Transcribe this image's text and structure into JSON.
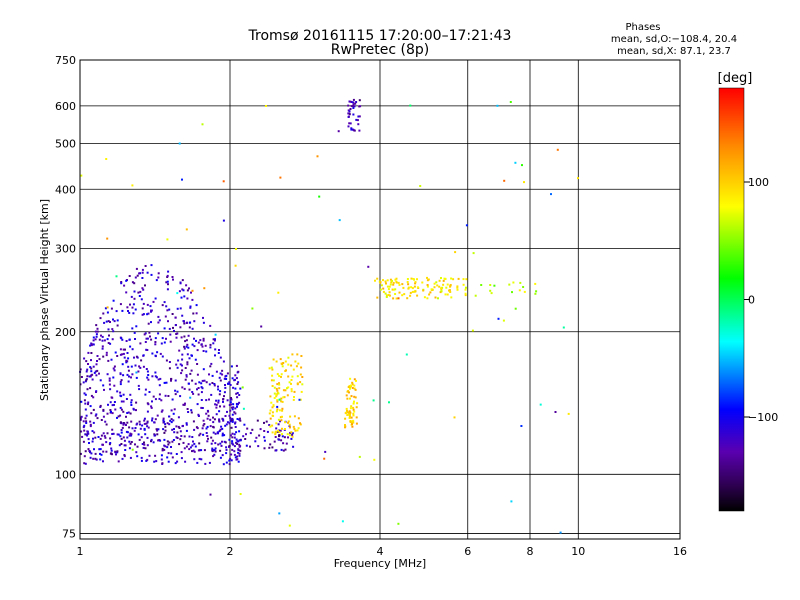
{
  "chart_data": {
    "type": "scatter",
    "title": "Tromsø 20161115 17:20:00–17:21:43",
    "subtitle": "RwPretec (8p)",
    "info_lines": [
      "Phases",
      "mean, sd,O:−108.4, 20.4",
      "mean, sd,X:  87.1, 23.7"
    ],
    "xlabel": "Frequency [MHz]",
    "ylabel": "Stationary phase Virtual Height [km]",
    "x_scale": "log2",
    "y_scale": "log",
    "xlim": [
      1,
      16
    ],
    "ylim": [
      73,
      750
    ],
    "x_ticks": [
      1,
      2,
      4,
      6,
      8,
      10,
      16
    ],
    "x_tick_labels": [
      "1",
      "2",
      "4",
      "6",
      "8",
      "10",
      "16"
    ],
    "y_ticks": [
      75,
      100,
      200,
      300,
      400,
      500,
      600,
      750
    ],
    "y_tick_labels": [
      "75",
      "100",
      "200",
      "300",
      "400",
      "500",
      "600",
      "750"
    ],
    "grid": true,
    "colorbar": {
      "label": "[deg]",
      "range": [
        -180,
        180
      ],
      "ticks": [
        100,
        0,
        -100
      ],
      "tick_labels": [
        "100",
        "0",
        "−100"
      ],
      "colors": [
        "#000000",
        "#2d0050",
        "#5a00b0",
        "#0000ff",
        "#00ffff",
        "#00ff00",
        "#ffff00",
        "#ff8c00",
        "#ff0000"
      ]
    },
    "clusters": [
      {
        "region": "O-mode main trace",
        "x_range": [
          1.0,
          2.1
        ],
        "y_range": [
          105,
          280
        ],
        "phase": -120,
        "count": 900
      },
      {
        "region": "O-mode lower edge",
        "x_range": [
          1.2,
          2.7
        ],
        "y_range": [
          112,
          130
        ],
        "phase": -125,
        "count": 180
      },
      {
        "region": "X-mode low",
        "x_range": [
          2.4,
          2.8
        ],
        "y_range": [
          120,
          180
        ],
        "phase": 95,
        "count": 130
      },
      {
        "region": "X-mode mid",
        "x_range": [
          3.4,
          3.6
        ],
        "y_range": [
          125,
          160
        ],
        "phase": 100,
        "count": 70
      },
      {
        "region": "F2 cusp",
        "x_range": [
          3.45,
          3.65
        ],
        "y_range": [
          530,
          620
        ],
        "phase": -125,
        "count": 40
      },
      {
        "region": "F layer trace",
        "x_range": [
          3.9,
          6.0
        ],
        "y_range": [
          235,
          260
        ],
        "phase": 90,
        "count": 130
      },
      {
        "region": "F layer extension",
        "x_range": [
          6.0,
          9.5
        ],
        "y_range": [
          240,
          255
        ],
        "phase": 60,
        "count": 15
      },
      {
        "region": "scattered echoes",
        "x_range": [
          1.0,
          10.0
        ],
        "y_range": [
          75,
          620
        ],
        "phase": 0,
        "count": 80
      }
    ]
  }
}
